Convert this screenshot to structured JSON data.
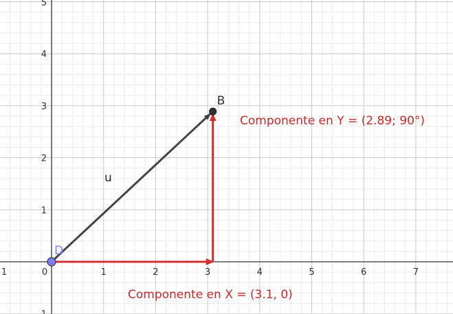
{
  "graphics": {
    "x_range": [
      -1,
      7.8
    ],
    "y_range": [
      -1,
      5
    ],
    "x_ticks": [
      "1",
      "0",
      "1",
      "2",
      "3",
      "4",
      "5",
      "6",
      "7"
    ],
    "y_ticks": [
      "1",
      "1",
      "2",
      "3",
      "4",
      "5"
    ],
    "colors": {
      "grid_major": "#c8c8c8",
      "grid_minor": "#ebebeb",
      "axis": "#333333",
      "vector": "#444444",
      "component": "#d32f2f",
      "point_b": "#333333",
      "point_d": "#8080ff"
    }
  },
  "points": {
    "D": {
      "label": "D",
      "x": 0,
      "y": 0
    },
    "B": {
      "label": "B",
      "x": 3.1,
      "y": 2.89
    }
  },
  "vector": {
    "label": "u"
  },
  "components": {
    "x": {
      "label": "Componente en X = (3.1, 0)"
    },
    "y": {
      "label": "Componente en Y = (2.89; 90°)"
    }
  }
}
